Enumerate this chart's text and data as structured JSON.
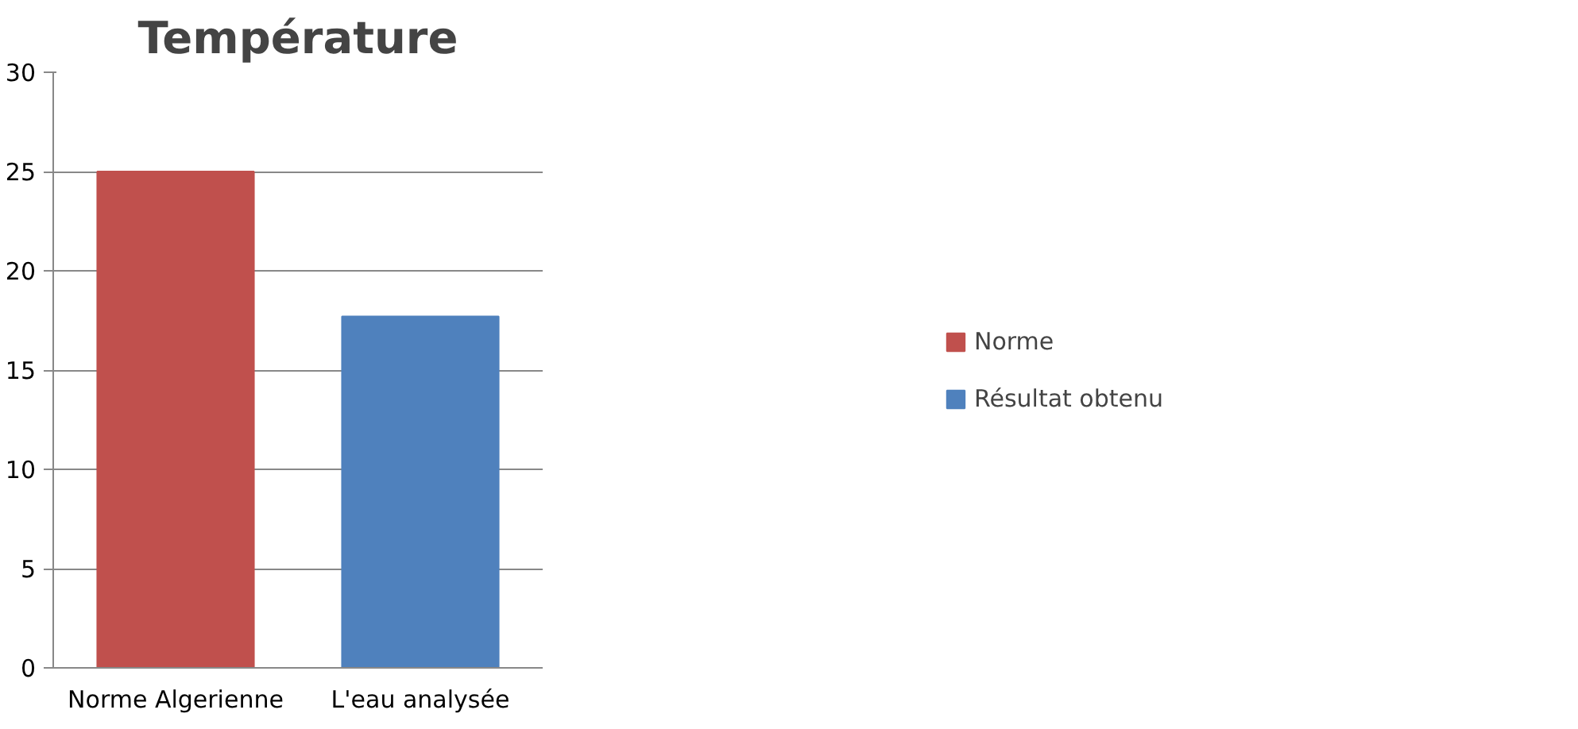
{
  "chart_data": {
    "type": "bar",
    "title": "Température",
    "categories": [
      "Norme Algerienne",
      "L'eau analysée"
    ],
    "series": [
      {
        "name": "Norme",
        "color": "#c0504d",
        "values": [
          25,
          null
        ]
      },
      {
        "name": "Résultat obtenu",
        "color": "#4f81bd",
        "values": [
          null,
          17.7
        ]
      }
    ],
    "ylim": [
      0,
      30
    ],
    "yticks": [
      0,
      5,
      10,
      15,
      20,
      25,
      30
    ],
    "grid": "y",
    "legend": "right"
  }
}
